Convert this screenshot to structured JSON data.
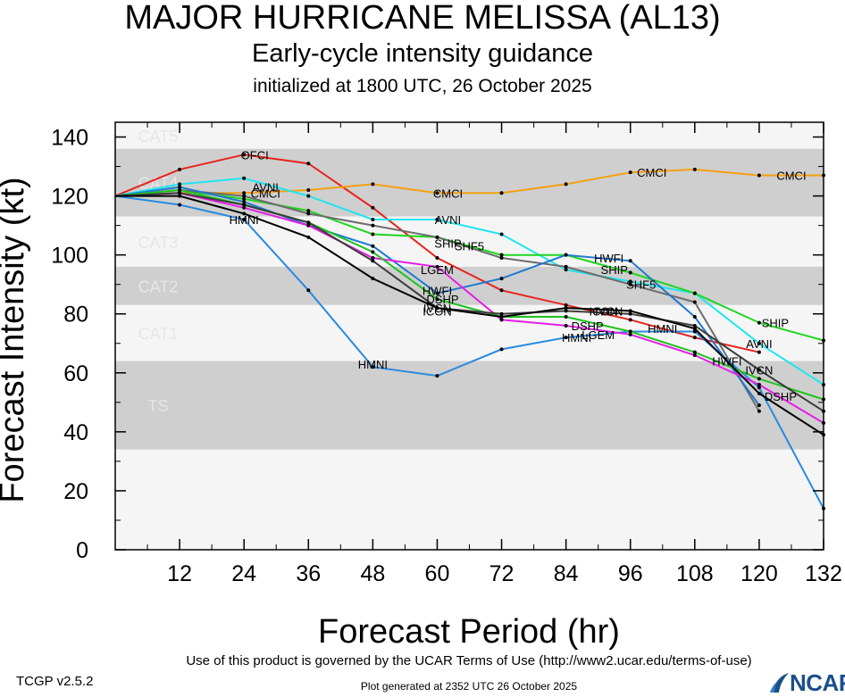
{
  "header": {
    "title": "MAJOR HURRICANE MELISSA (AL13)",
    "subtitle": "Early-cycle intensity guidance",
    "initialized": "initialized at 1800 UTC, 26 October 2025"
  },
  "footer": {
    "terms": "Use of this product is governed by the UCAR Terms of Use (http://www2.ucar.edu/terms-of-use)",
    "version": "TCGP v2.5.2",
    "generated": "Plot generated at 2352 UTC   26 October 2025",
    "logo_text": "NCAR"
  },
  "colors": {
    "band_dark": "#cfcfcf",
    "band_light": "#f5f5f5",
    "category_label": "#e6e6e6"
  },
  "chart_data": {
    "type": "line",
    "xlabel": "Forecast Period (hr)",
    "ylabel": "Forecast Intensity (kt)",
    "xlim": [
      0,
      132
    ],
    "ylim": [
      0,
      145
    ],
    "xticks": [
      12,
      24,
      36,
      48,
      60,
      72,
      84,
      96,
      108,
      120,
      132
    ],
    "yticks": [
      0,
      20,
      40,
      60,
      80,
      100,
      120,
      140
    ],
    "categories_bands": [
      {
        "label": "CAT5",
        "min": 136,
        "max": 145,
        "shade": "light"
      },
      {
        "label": "CAT4",
        "min": 113,
        "max": 136,
        "shade": "dark"
      },
      {
        "label": "CAT3",
        "min": 96,
        "max": 113,
        "shade": "light"
      },
      {
        "label": "CAT2",
        "min": 83,
        "max": 96,
        "shade": "dark"
      },
      {
        "label": "CAT1",
        "min": 64,
        "max": 83,
        "shade": "light"
      },
      {
        "label": "TS",
        "min": 34,
        "max": 64,
        "shade": "dark"
      },
      {
        "label": "",
        "min": 0,
        "max": 34,
        "shade": "light"
      }
    ],
    "series": [
      {
        "name": "OFCI",
        "color": "#e8241c",
        "label_x": [
          26
        ],
        "label_y": [
          134
        ],
        "x": [
          0,
          12,
          24,
          36,
          48,
          60,
          72,
          84,
          96,
          108,
          120
        ],
        "y": [
          120,
          129,
          134,
          131,
          116,
          99,
          88,
          83,
          78,
          72,
          67
        ]
      },
      {
        "name": "CMCI",
        "color": "#f5a00f",
        "label_x": [
          28,
          62,
          100,
          126
        ],
        "label_y": [
          121,
          121,
          128,
          127
        ],
        "x": [
          0,
          12,
          24,
          36,
          48,
          60,
          72,
          84,
          96,
          108,
          120,
          132
        ],
        "y": [
          120,
          121,
          121,
          122,
          124,
          121,
          121,
          124,
          128,
          129,
          127,
          127
        ]
      },
      {
        "name": "AVNI",
        "color": "#1ee6ee",
        "label_x": [
          28,
          62,
          120
        ],
        "label_y": [
          123,
          112,
          70
        ],
        "x": [
          0,
          12,
          24,
          36,
          48,
          60,
          72,
          84,
          96,
          108,
          120,
          132
        ],
        "y": [
          120,
          124,
          126,
          120,
          112,
          112,
          107,
          95,
          91,
          87,
          70,
          56
        ]
      },
      {
        "name": "SHIP",
        "color": "#1fd61f",
        "label_x": [
          62,
          93,
          123
        ],
        "label_y": [
          104,
          95,
          77
        ],
        "x": [
          0,
          12,
          24,
          36,
          48,
          60,
          72,
          84,
          96,
          108,
          120,
          132
        ],
        "y": [
          120,
          122,
          119,
          115,
          107,
          106,
          100,
          100,
          94,
          87,
          77,
          71
        ]
      },
      {
        "name": "SHF5",
        "color": "#6c6c6c",
        "label_x": [
          66,
          98
        ],
        "label_y": [
          103,
          90
        ],
        "x": [
          0,
          12,
          24,
          36,
          48,
          60,
          72,
          84,
          96,
          108,
          120
        ],
        "y": [
          120,
          122,
          120,
          114,
          110,
          106,
          99,
          96,
          90,
          84,
          47
        ]
      },
      {
        "name": "HWFI",
        "color": "#1f7ad1",
        "label_x": [
          92,
          60,
          114
        ],
        "label_y": [
          99,
          88,
          64
        ],
        "x": [
          0,
          12,
          24,
          36,
          48,
          60,
          72,
          84,
          96,
          108,
          120
        ],
        "y": [
          120,
          123,
          118,
          110,
          103,
          87,
          92,
          100,
          98,
          79,
          49
        ]
      },
      {
        "name": "HMNI",
        "color": "#2a8ae0",
        "label_x": [
          24,
          48,
          102,
          86
        ],
        "label_y": [
          112,
          63,
          75,
          72
        ],
        "x": [
          0,
          12,
          24,
          36,
          48,
          60,
          72,
          84,
          96,
          108,
          120,
          132
        ],
        "y": [
          120,
          117,
          112,
          88,
          62,
          59,
          68,
          72,
          74,
          74,
          55,
          14
        ]
      },
      {
        "name": "LGEM",
        "color": "#e61ee6",
        "label_x": [
          60,
          90
        ],
        "label_y": [
          95,
          73
        ],
        "x": [
          0,
          12,
          24,
          36,
          48,
          60,
          72,
          84,
          96,
          108,
          120,
          132
        ],
        "y": [
          120,
          121,
          116,
          110,
          99,
          96,
          78,
          76,
          73,
          66,
          56,
          43
        ]
      },
      {
        "name": "DSHP",
        "color": "#1fc41f",
        "label_x": [
          61,
          88,
          124
        ],
        "label_y": [
          85,
          76,
          52
        ],
        "x": [
          0,
          12,
          24,
          36,
          48,
          60,
          72,
          84,
          96,
          108,
          120,
          132
        ],
        "y": [
          120,
          122,
          117,
          111,
          101,
          85,
          79,
          79,
          74,
          67,
          58,
          51
        ]
      },
      {
        "name": "IVCN",
        "color": "#3c3c3c",
        "label_x": [
          60,
          92,
          120
        ],
        "label_y": [
          82,
          81,
          61
        ],
        "x": [
          0,
          12,
          24,
          36,
          48,
          60,
          72,
          84,
          96,
          108,
          120,
          132
        ],
        "y": [
          120,
          121,
          117,
          111,
          98,
          82,
          80,
          81,
          80,
          76,
          61,
          47
        ]
      },
      {
        "name": "ICON",
        "color": "#000000",
        "label_x": [
          60,
          91
        ],
        "label_y": [
          81,
          81
        ],
        "x": [
          0,
          12,
          24,
          36,
          48,
          60,
          72,
          84,
          96,
          108,
          120,
          132
        ],
        "y": [
          120,
          120,
          114,
          106,
          92,
          82,
          79,
          82,
          81,
          75,
          53,
          39
        ]
      }
    ]
  }
}
